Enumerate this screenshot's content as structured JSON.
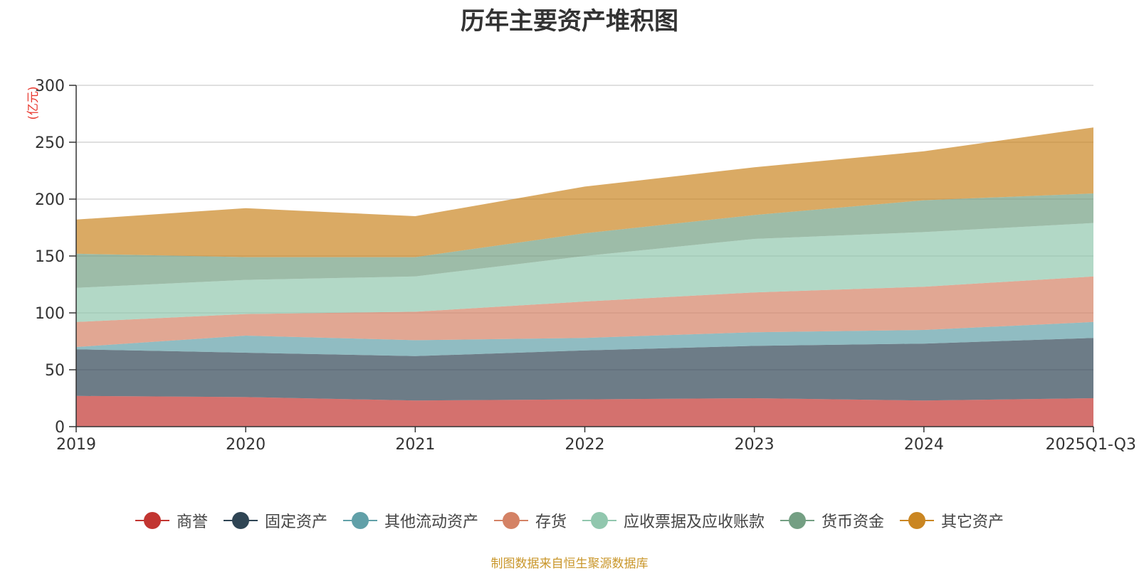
{
  "chart_data": {
    "type": "area",
    "stacked": true,
    "title": "历年主要资产堆积图",
    "ylabel": "(亿元)",
    "xlabel": "",
    "categories": [
      "2019",
      "2020",
      "2021",
      "2022",
      "2023",
      "2024",
      "2025Q1-Q3"
    ],
    "ylim": [
      0,
      300
    ],
    "yticks": [
      "0",
      "50",
      "100",
      "150",
      "200",
      "250",
      "300"
    ],
    "grid": true,
    "legend_position": "bottom",
    "series": [
      {
        "name": "商誉",
        "color": "#c23531",
        "values": [
          27,
          26,
          23,
          24,
          25,
          23,
          25
        ]
      },
      {
        "name": "固定资产",
        "color": "#2f4554",
        "values": [
          41,
          39,
          39,
          43,
          46,
          50,
          53
        ]
      },
      {
        "name": "其他流动资产",
        "color": "#61a0a8",
        "values": [
          2,
          15,
          14,
          11,
          12,
          12,
          14
        ]
      },
      {
        "name": "存货",
        "color": "#d48265",
        "values": [
          22,
          19,
          25,
          32,
          35,
          38,
          40
        ]
      },
      {
        "name": "应收票据及应收账款",
        "color": "#91c7ae",
        "values": [
          30,
          30,
          31,
          40,
          47,
          48,
          47
        ]
      },
      {
        "name": "货币资金",
        "color": "#749f83",
        "values": [
          30,
          20,
          17,
          20,
          21,
          28,
          26
        ]
      },
      {
        "name": "其它资产",
        "color": "#ca8622",
        "values": [
          30,
          43,
          36,
          41,
          42,
          43,
          58
        ]
      }
    ]
  },
  "footer": {
    "source": "制图数据来自恒生聚源数据库"
  }
}
